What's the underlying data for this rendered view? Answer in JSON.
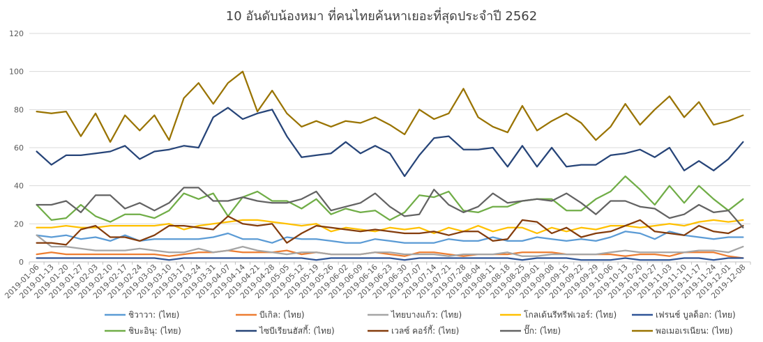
{
  "chart_data": {
    "type": "line",
    "title": "10 อันดับน้องหมา ที่คนไทยค้นหาเยอะที่สุดประจำปี 2562",
    "xlabel": "",
    "ylabel": "",
    "ylim": [
      0,
      120
    ],
    "yticks": [
      0,
      20,
      40,
      60,
      80,
      100,
      120
    ],
    "grid": true,
    "legend_position": "bottom",
    "x": [
      "2019-01-06",
      "2019-01-13",
      "2019-01-20",
      "2019-01-27",
      "2019-02-03",
      "2019-02-10",
      "2019-02-17",
      "2019-02-24",
      "2019-03-03",
      "2019-03-10",
      "2019-03-17",
      "2019-03-24",
      "2019-03-31",
      "2019-04-07",
      "2019-04-14",
      "2019-04-21",
      "2019-04-28",
      "2019-05-05",
      "2019-05-12",
      "2019-05-19",
      "2019-05-26",
      "2019-06-02",
      "2019-06-09",
      "2019-06-16",
      "2019-06-23",
      "2019-06-30",
      "2019-07-07",
      "2019-07-14",
      "2019-07-21",
      "2019-07-28",
      "2019-08-04",
      "2019-08-11",
      "2019-08-18",
      "2019-08-25",
      "2019-09-01",
      "2019-09-08",
      "2019-09-15",
      "2019-09-22",
      "2019-09-29",
      "2019-10-06",
      "2019-10-13",
      "2019-10-20",
      "2019-10-27",
      "2019-11-03",
      "2019-11-10",
      "2019-11-17",
      "2019-11-24",
      "2019-12-01",
      "2019-12-08"
    ],
    "x_tick_labels": [
      "2019-01-06",
      "2019-01-13",
      "2019-01-20",
      "2019-01-27",
      "2019-02-03",
      "2019-02-10",
      "2019-02-17",
      "2019-02-24",
      "2019-03-03",
      "2019-03-10",
      "2019-03-17",
      "2019-03-24",
      "2019-03-31",
      "2019-04-07",
      "2019-04-14",
      "2019-04-21",
      "2019-04-28",
      "2019-05-05",
      "2019-05-12",
      "2019-05-19",
      "2019-05-26",
      "2019-06-02",
      "2019-06-09",
      "2019-06-16",
      "2019-06-23",
      "2019-06-30",
      "2019-07-07",
      "2019-07-14",
      "2019-07-21",
      "2019-07-28",
      "2019-08-04",
      "2019-08-11",
      "2019-08-18",
      "2019-08-25",
      "2019-09-01",
      "2019-09-08",
      "2019-09-15",
      "2019-09-22",
      "2019-09-29",
      "2019-10-06",
      "2019-10-13",
      "2019-10-20",
      "2019-10-27",
      "2019-11-03",
      "2019-11-10",
      "2019-11-17",
      "2019-11-24",
      "2019-12-01",
      "2019-12-08"
    ],
    "series": [
      {
        "name": "ชิวาวา: (ไทย)",
        "color": "#5B9BD5",
        "values": [
          14,
          13,
          14,
          12,
          13,
          11,
          14,
          11,
          12,
          12,
          12,
          12,
          13,
          15,
          12,
          12,
          10,
          13,
          12,
          12,
          11,
          10,
          10,
          12,
          11,
          10,
          10,
          10,
          12,
          11,
          11,
          13,
          11,
          11,
          13,
          12,
          11,
          12,
          11,
          13,
          16,
          15,
          12,
          16,
          14,
          13,
          12,
          13,
          13
        ]
      },
      {
        "name": "บีเกิล: (ไทย)",
        "color": "#ED7D31",
        "values": [
          4,
          5,
          4,
          4,
          4,
          4,
          4,
          4,
          4,
          3,
          4,
          5,
          5,
          6,
          5,
          5,
          5,
          6,
          4,
          5,
          4,
          4,
          4,
          5,
          4,
          3,
          5,
          5,
          4,
          3,
          4,
          4,
          4,
          5,
          5,
          5,
          4,
          4,
          4,
          4,
          3,
          4,
          4,
          3,
          5,
          5,
          5,
          3,
          2
        ]
      },
      {
        "name": "ไทยบางแก้ว: (ไทย)",
        "color": "#A5A5A5",
        "values": [
          14,
          8,
          8,
          7,
          6,
          6,
          6,
          7,
          6,
          5,
          5,
          7,
          5,
          6,
          8,
          6,
          5,
          4,
          5,
          5,
          4,
          4,
          4,
          5,
          5,
          4,
          4,
          4,
          3,
          4,
          4,
          4,
          5,
          3,
          3,
          4,
          4,
          4,
          4,
          5,
          6,
          5,
          5,
          5,
          5,
          6,
          6,
          5,
          8
        ]
      },
      {
        "name": "โกลเด้นรีทรีฟเวอร์: (ไทย)",
        "color": "#FFC000",
        "values": [
          18,
          18,
          19,
          18,
          18,
          19,
          19,
          19,
          19,
          20,
          17,
          19,
          20,
          21,
          22,
          22,
          21,
          20,
          19,
          20,
          16,
          18,
          17,
          16,
          18,
          17,
          18,
          15,
          18,
          16,
          19,
          16,
          18,
          18,
          15,
          18,
          16,
          18,
          17,
          19,
          19,
          18,
          19,
          20,
          19,
          21,
          22,
          21,
          22
        ]
      },
      {
        "name": "เฟรนช์ บูลด็อก: (ไทย)",
        "color": "#2F5597",
        "values": [
          2,
          2,
          2,
          2,
          2,
          2,
          2,
          2,
          2,
          1,
          2,
          2,
          2,
          2,
          2,
          2,
          2,
          2,
          2,
          1,
          2,
          2,
          2,
          2,
          2,
          1,
          2,
          2,
          2,
          2,
          2,
          2,
          2,
          1,
          2,
          2,
          2,
          1,
          1,
          1,
          2,
          1,
          1,
          1,
          2,
          2,
          1,
          2,
          2
        ]
      },
      {
        "name": "ชิบะอินุ: (ไทย)",
        "color": "#70AD47",
        "values": [
          30,
          22,
          23,
          30,
          24,
          21,
          25,
          25,
          23,
          27,
          36,
          33,
          36,
          24,
          34,
          37,
          32,
          32,
          28,
          33,
          25,
          28,
          26,
          27,
          22,
          26,
          35,
          34,
          37,
          27,
          26,
          29,
          29,
          32,
          33,
          33,
          27,
          27,
          33,
          37,
          45,
          38,
          30,
          40,
          31,
          40,
          33,
          27,
          33
        ]
      },
      {
        "name": "ไซบีเรียนฮัสกี้: (ไทย)",
        "color": "#264478",
        "values": [
          58,
          51,
          56,
          56,
          57,
          58,
          61,
          54,
          58,
          59,
          61,
          60,
          76,
          81,
          75,
          78,
          80,
          66,
          55,
          56,
          57,
          63,
          57,
          61,
          57,
          45,
          56,
          65,
          66,
          59,
          59,
          60,
          50,
          61,
          50,
          60,
          50,
          51,
          51,
          56,
          57,
          59,
          55,
          60,
          48,
          53,
          48,
          54,
          63
        ]
      },
      {
        "name": "เวลซ์ คอร์กี้: (ไทย)",
        "color": "#843C0C",
        "values": [
          10,
          10,
          9,
          17,
          19,
          13,
          13,
          11,
          14,
          19,
          19,
          18,
          17,
          24,
          20,
          19,
          20,
          10,
          15,
          19,
          18,
          17,
          16,
          17,
          16,
          15,
          15,
          16,
          14,
          16,
          16,
          11,
          12,
          22,
          21,
          15,
          18,
          13,
          15,
          16,
          19,
          22,
          16,
          15,
          14,
          19,
          16,
          15,
          19
        ]
      },
      {
        "name": "ปั๊ก: (ไทย)",
        "color": "#636363",
        "values": [
          30,
          30,
          32,
          26,
          35,
          35,
          28,
          31,
          27,
          31,
          39,
          39,
          32,
          32,
          34,
          32,
          31,
          31,
          33,
          37,
          27,
          29,
          31,
          36,
          29,
          24,
          25,
          38,
          30,
          26,
          29,
          36,
          31,
          32,
          33,
          32,
          36,
          31,
          25,
          32,
          32,
          29,
          28,
          23,
          25,
          30,
          26,
          27,
          18
        ]
      },
      {
        "name": "พอเมอเรเนียน: (ไทย)",
        "color": "#997300",
        "values": [
          79,
          78,
          79,
          66,
          78,
          63,
          77,
          69,
          77,
          64,
          86,
          94,
          83,
          94,
          100,
          79,
          90,
          78,
          71,
          74,
          71,
          74,
          73,
          76,
          72,
          67,
          80,
          75,
          78,
          91,
          76,
          71,
          68,
          82,
          69,
          74,
          78,
          73,
          64,
          71,
          83,
          72,
          80,
          87,
          76,
          84,
          72,
          74,
          77
        ]
      }
    ]
  }
}
